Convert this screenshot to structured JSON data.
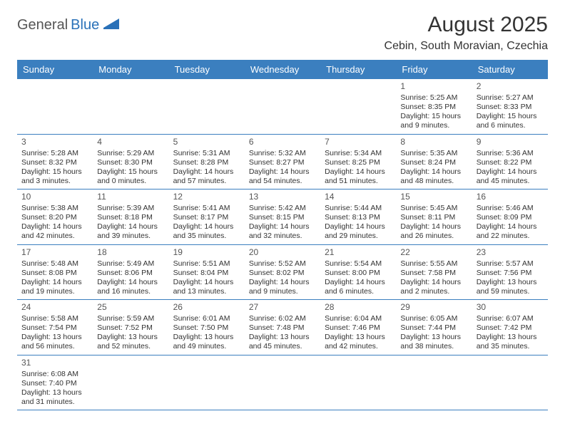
{
  "logo": {
    "text1": "General",
    "text2": "Blue"
  },
  "header": {
    "title": "August 2025",
    "location": "Cebin, South Moravian, Czechia"
  },
  "dayNames": [
    "Sunday",
    "Monday",
    "Tuesday",
    "Wednesday",
    "Thursday",
    "Friday",
    "Saturday"
  ],
  "colors": {
    "headerBg": "#3b7fbf",
    "headerText": "#ffffff",
    "rowBorder": "#3b7fbf",
    "text": "#333333",
    "logoBlue": "#2a71b8"
  },
  "weeks": [
    [
      null,
      null,
      null,
      null,
      null,
      {
        "day": "1",
        "sunrise": "Sunrise: 5:25 AM",
        "sunset": "Sunset: 8:35 PM",
        "daylight": "Daylight: 15 hours and 9 minutes."
      },
      {
        "day": "2",
        "sunrise": "Sunrise: 5:27 AM",
        "sunset": "Sunset: 8:33 PM",
        "daylight": "Daylight: 15 hours and 6 minutes."
      }
    ],
    [
      {
        "day": "3",
        "sunrise": "Sunrise: 5:28 AM",
        "sunset": "Sunset: 8:32 PM",
        "daylight": "Daylight: 15 hours and 3 minutes."
      },
      {
        "day": "4",
        "sunrise": "Sunrise: 5:29 AM",
        "sunset": "Sunset: 8:30 PM",
        "daylight": "Daylight: 15 hours and 0 minutes."
      },
      {
        "day": "5",
        "sunrise": "Sunrise: 5:31 AM",
        "sunset": "Sunset: 8:28 PM",
        "daylight": "Daylight: 14 hours and 57 minutes."
      },
      {
        "day": "6",
        "sunrise": "Sunrise: 5:32 AM",
        "sunset": "Sunset: 8:27 PM",
        "daylight": "Daylight: 14 hours and 54 minutes."
      },
      {
        "day": "7",
        "sunrise": "Sunrise: 5:34 AM",
        "sunset": "Sunset: 8:25 PM",
        "daylight": "Daylight: 14 hours and 51 minutes."
      },
      {
        "day": "8",
        "sunrise": "Sunrise: 5:35 AM",
        "sunset": "Sunset: 8:24 PM",
        "daylight": "Daylight: 14 hours and 48 minutes."
      },
      {
        "day": "9",
        "sunrise": "Sunrise: 5:36 AM",
        "sunset": "Sunset: 8:22 PM",
        "daylight": "Daylight: 14 hours and 45 minutes."
      }
    ],
    [
      {
        "day": "10",
        "sunrise": "Sunrise: 5:38 AM",
        "sunset": "Sunset: 8:20 PM",
        "daylight": "Daylight: 14 hours and 42 minutes."
      },
      {
        "day": "11",
        "sunrise": "Sunrise: 5:39 AM",
        "sunset": "Sunset: 8:18 PM",
        "daylight": "Daylight: 14 hours and 39 minutes."
      },
      {
        "day": "12",
        "sunrise": "Sunrise: 5:41 AM",
        "sunset": "Sunset: 8:17 PM",
        "daylight": "Daylight: 14 hours and 35 minutes."
      },
      {
        "day": "13",
        "sunrise": "Sunrise: 5:42 AM",
        "sunset": "Sunset: 8:15 PM",
        "daylight": "Daylight: 14 hours and 32 minutes."
      },
      {
        "day": "14",
        "sunrise": "Sunrise: 5:44 AM",
        "sunset": "Sunset: 8:13 PM",
        "daylight": "Daylight: 14 hours and 29 minutes."
      },
      {
        "day": "15",
        "sunrise": "Sunrise: 5:45 AM",
        "sunset": "Sunset: 8:11 PM",
        "daylight": "Daylight: 14 hours and 26 minutes."
      },
      {
        "day": "16",
        "sunrise": "Sunrise: 5:46 AM",
        "sunset": "Sunset: 8:09 PM",
        "daylight": "Daylight: 14 hours and 22 minutes."
      }
    ],
    [
      {
        "day": "17",
        "sunrise": "Sunrise: 5:48 AM",
        "sunset": "Sunset: 8:08 PM",
        "daylight": "Daylight: 14 hours and 19 minutes."
      },
      {
        "day": "18",
        "sunrise": "Sunrise: 5:49 AM",
        "sunset": "Sunset: 8:06 PM",
        "daylight": "Daylight: 14 hours and 16 minutes."
      },
      {
        "day": "19",
        "sunrise": "Sunrise: 5:51 AM",
        "sunset": "Sunset: 8:04 PM",
        "daylight": "Daylight: 14 hours and 13 minutes."
      },
      {
        "day": "20",
        "sunrise": "Sunrise: 5:52 AM",
        "sunset": "Sunset: 8:02 PM",
        "daylight": "Daylight: 14 hours and 9 minutes."
      },
      {
        "day": "21",
        "sunrise": "Sunrise: 5:54 AM",
        "sunset": "Sunset: 8:00 PM",
        "daylight": "Daylight: 14 hours and 6 minutes."
      },
      {
        "day": "22",
        "sunrise": "Sunrise: 5:55 AM",
        "sunset": "Sunset: 7:58 PM",
        "daylight": "Daylight: 14 hours and 2 minutes."
      },
      {
        "day": "23",
        "sunrise": "Sunrise: 5:57 AM",
        "sunset": "Sunset: 7:56 PM",
        "daylight": "Daylight: 13 hours and 59 minutes."
      }
    ],
    [
      {
        "day": "24",
        "sunrise": "Sunrise: 5:58 AM",
        "sunset": "Sunset: 7:54 PM",
        "daylight": "Daylight: 13 hours and 56 minutes."
      },
      {
        "day": "25",
        "sunrise": "Sunrise: 5:59 AM",
        "sunset": "Sunset: 7:52 PM",
        "daylight": "Daylight: 13 hours and 52 minutes."
      },
      {
        "day": "26",
        "sunrise": "Sunrise: 6:01 AM",
        "sunset": "Sunset: 7:50 PM",
        "daylight": "Daylight: 13 hours and 49 minutes."
      },
      {
        "day": "27",
        "sunrise": "Sunrise: 6:02 AM",
        "sunset": "Sunset: 7:48 PM",
        "daylight": "Daylight: 13 hours and 45 minutes."
      },
      {
        "day": "28",
        "sunrise": "Sunrise: 6:04 AM",
        "sunset": "Sunset: 7:46 PM",
        "daylight": "Daylight: 13 hours and 42 minutes."
      },
      {
        "day": "29",
        "sunrise": "Sunrise: 6:05 AM",
        "sunset": "Sunset: 7:44 PM",
        "daylight": "Daylight: 13 hours and 38 minutes."
      },
      {
        "day": "30",
        "sunrise": "Sunrise: 6:07 AM",
        "sunset": "Sunset: 7:42 PM",
        "daylight": "Daylight: 13 hours and 35 minutes."
      }
    ],
    [
      {
        "day": "31",
        "sunrise": "Sunrise: 6:08 AM",
        "sunset": "Sunset: 7:40 PM",
        "daylight": "Daylight: 13 hours and 31 minutes."
      },
      null,
      null,
      null,
      null,
      null,
      null
    ]
  ]
}
